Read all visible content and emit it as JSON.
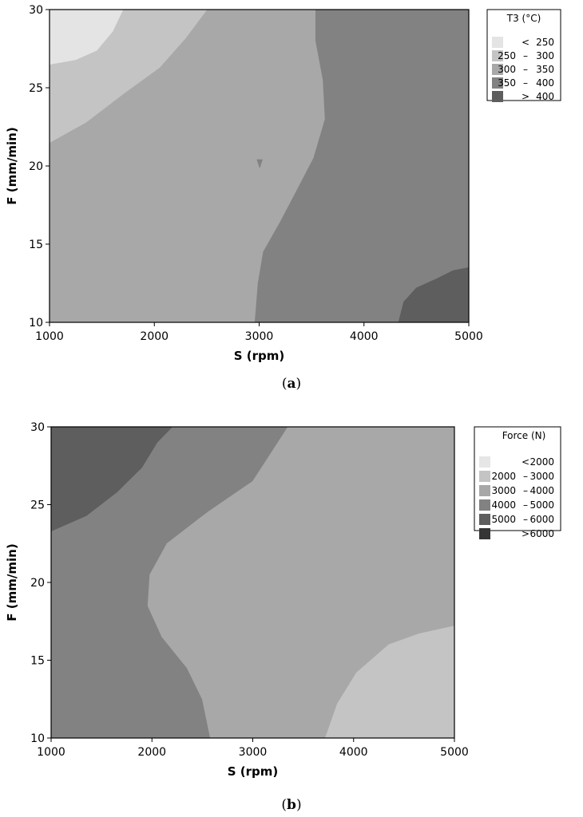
{
  "chart_data": [
    {
      "type": "contour",
      "panel": "a",
      "caption_letter": "a",
      "xlabel": "S (rpm)",
      "ylabel": "F (mm/min)",
      "xlim": [
        1000,
        5000
      ],
      "ylim": [
        10,
        30
      ],
      "xticks": [
        "1000",
        "2000",
        "3000",
        "4000",
        "5000"
      ],
      "yticks": [
        "10",
        "15",
        "20",
        "25",
        "30"
      ],
      "legend": {
        "title": "T3 (°C)",
        "position": "top-right",
        "entries": [
          {
            "op": "<",
            "lo": "",
            "hi": "250",
            "color": "#e4e4e4"
          },
          {
            "op": "–",
            "lo": "250",
            "hi": "300",
            "color": "#c4c4c4"
          },
          {
            "op": "–",
            "lo": "300",
            "hi": "350",
            "color": "#a8a8a8"
          },
          {
            "op": "–",
            "lo": "350",
            "hi": "400",
            "color": "#828282"
          },
          {
            "op": ">",
            "lo": "",
            "hi": "400",
            "color": "#5e5e5e"
          }
        ]
      },
      "regions": [
        {
          "level": 2,
          "color": "#a8a8a8",
          "points": [
            [
              1000,
              10
            ],
            [
              5000,
              10
            ],
            [
              5000,
              30
            ],
            [
              1000,
              30
            ]
          ]
        },
        {
          "level": 1,
          "color": "#c4c4c4",
          "points": [
            [
              1000,
              21.5
            ],
            [
              1350,
              22.8
            ],
            [
              1700,
              24.6
            ],
            [
              2050,
              26.3
            ],
            [
              2300,
              28.2
            ],
            [
              2500,
              30
            ],
            [
              1000,
              30
            ]
          ]
        },
        {
          "level": 0,
          "color": "#e4e4e4",
          "points": [
            [
              1000,
              26.5
            ],
            [
              1250,
              26.8
            ],
            [
              1450,
              27.4
            ],
            [
              1600,
              28.6
            ],
            [
              1700,
              30
            ],
            [
              1000,
              30
            ]
          ]
        },
        {
          "level": 3,
          "color": "#828282",
          "points": [
            [
              2960,
              10
            ],
            [
              2990,
              12.5
            ],
            [
              3040,
              14.5
            ],
            [
              3200,
              16.4
            ],
            [
              3350,
              18.3
            ],
            [
              3520,
              20.5
            ],
            [
              3630,
              23
            ],
            [
              3610,
              25.5
            ],
            [
              3540,
              28
            ],
            [
              3540,
              30
            ],
            [
              5000,
              30
            ],
            [
              5000,
              10
            ]
          ]
        },
        {
          "level": 3,
          "color": "#828282",
          "points": [
            [
              2980,
              20.4
            ],
            [
              3030,
              20.4
            ],
            [
              3005,
              19.9
            ]
          ]
        },
        {
          "level": 4,
          "color": "#5e5e5e",
          "points": [
            [
              4330,
              10
            ],
            [
              4380,
              11.3
            ],
            [
              4500,
              12.2
            ],
            [
              4700,
              12.8
            ],
            [
              4850,
              13.3
            ],
            [
              5000,
              13.5
            ],
            [
              5000,
              10
            ]
          ]
        }
      ]
    },
    {
      "type": "contour",
      "panel": "b",
      "caption_letter": "b",
      "xlabel": "S (rpm)",
      "ylabel": "F (mm/min)",
      "xlim": [
        1000,
        5000
      ],
      "ylim": [
        10,
        30
      ],
      "xticks": [
        "1000",
        "2000",
        "3000",
        "4000",
        "5000"
      ],
      "yticks": [
        "10",
        "15",
        "20",
        "25",
        "30"
      ],
      "legend": {
        "title": "Force (N)",
        "position": "top-right",
        "entries": [
          {
            "op": "<",
            "lo": "",
            "hi": "2000",
            "color": "#e6e6e6"
          },
          {
            "op": "–",
            "lo": "2000",
            "hi": "3000",
            "color": "#c4c4c4"
          },
          {
            "op": "–",
            "lo": "3000",
            "hi": "4000",
            "color": "#a8a8a8"
          },
          {
            "op": "–",
            "lo": "4000",
            "hi": "5000",
            "color": "#828282"
          },
          {
            "op": "–",
            "lo": "5000",
            "hi": "6000",
            "color": "#5e5e5e"
          },
          {
            "op": ">",
            "lo": "",
            "hi": "6000",
            "color": "#353535"
          }
        ]
      },
      "regions": [
        {
          "level": 3,
          "color": "#828282",
          "points": [
            [
              1000,
              10
            ],
            [
              5000,
              10
            ],
            [
              5000,
              30
            ],
            [
              1000,
              30
            ]
          ]
        },
        {
          "level": 2,
          "color": "#a8a8a8",
          "points": [
            [
              2580,
              10
            ],
            [
              2500,
              12.5
            ],
            [
              2350,
              14.5
            ],
            [
              2100,
              16.5
            ],
            [
              1960,
              18.5
            ],
            [
              1980,
              20.5
            ],
            [
              2150,
              22.5
            ],
            [
              2550,
              24.5
            ],
            [
              3000,
              26.5
            ],
            [
              3200,
              28.5
            ],
            [
              3350,
              30
            ],
            [
              5000,
              30
            ],
            [
              5000,
              10
            ]
          ]
        },
        {
          "level": 4,
          "color": "#5e5e5e",
          "points": [
            [
              1000,
              23.3
            ],
            [
              1350,
              24.3
            ],
            [
              1650,
              25.8
            ],
            [
              1900,
              27.4
            ],
            [
              2050,
              29
            ],
            [
              2200,
              30
            ],
            [
              1000,
              30
            ]
          ]
        },
        {
          "level": 1,
          "color": "#c4c4c4",
          "points": [
            [
              3720,
              10
            ],
            [
              3840,
              12.2
            ],
            [
              4030,
              14.2
            ],
            [
              4350,
              16
            ],
            [
              4650,
              16.7
            ],
            [
              5000,
              17.2
            ],
            [
              5000,
              10
            ]
          ]
        }
      ]
    }
  ],
  "captions": {
    "a_open": "(",
    "a_close": ")",
    "b_open": "(",
    "b_close": ")"
  }
}
